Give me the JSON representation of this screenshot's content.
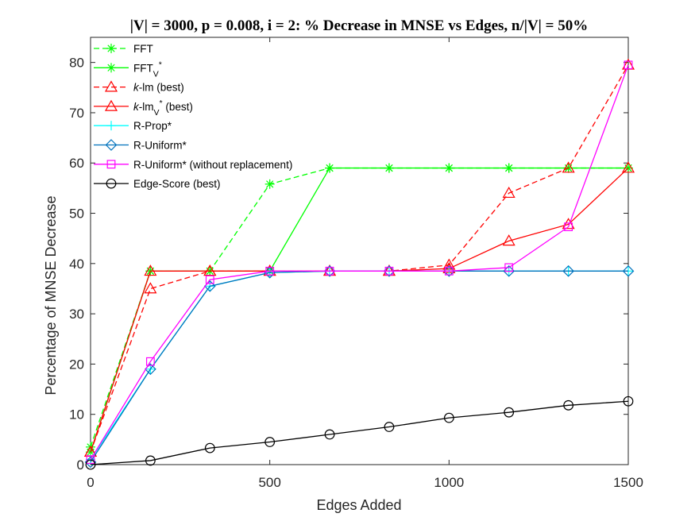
{
  "chart_data": {
    "type": "line",
    "title": "|V| = 3000, p = 0.008, i = 2: % Decrease in MNSE vs Edges, n/|V| = 50%",
    "xlabel": "Edges Added",
    "ylabel": "Percentage of MNSE Decrease",
    "xlim": [
      0,
      1500
    ],
    "ylim": [
      0,
      85
    ],
    "xticks": [
      "0",
      "500",
      "1000",
      "1500"
    ],
    "yticks": [
      "0",
      "10",
      "20",
      "30",
      "40",
      "50",
      "60",
      "70",
      "80"
    ],
    "grid": false,
    "legend_position": "top-left",
    "x": [
      0,
      167,
      333,
      500,
      667,
      833,
      1000,
      1167,
      1333,
      1500
    ],
    "series": [
      {
        "name": "FFT",
        "color": "#00ff00",
        "dash": "dashed",
        "marker": "asterisk",
        "values": [
          3.5,
          38.5,
          38.5,
          55.8,
          59,
          59,
          59,
          59,
          59,
          59
        ]
      },
      {
        "name": "FFT_V*",
        "color": "#00ff00",
        "dash": "solid",
        "marker": "asterisk",
        "values": [
          2.5,
          38.5,
          38.5,
          38.5,
          59,
          59,
          59,
          59,
          59,
          59
        ]
      },
      {
        "name": "k-lm (best)",
        "color": "#ff0000",
        "dash": "dashed",
        "marker": "triangle",
        "values": [
          2.5,
          35,
          38.5,
          38.5,
          38.5,
          38.5,
          39.7,
          54,
          59,
          79.5
        ]
      },
      {
        "name": "k-lm_V* (best)",
        "color": "#ff0000",
        "dash": "solid",
        "marker": "triangle",
        "values": [
          2.5,
          38.5,
          38.5,
          38.5,
          38.5,
          38.5,
          39,
          44.5,
          47.8,
          59
        ]
      },
      {
        "name": "R-Prop*",
        "color": "#00ffff",
        "dash": "solid",
        "marker": "plus",
        "values": [
          1,
          19,
          35.5,
          38.2,
          38.5,
          38.5,
          38.5,
          38.5,
          38.5,
          38.5
        ]
      },
      {
        "name": "R-Uniform*",
        "color": "#0072bd",
        "dash": "solid",
        "marker": "diamond",
        "values": [
          0.5,
          19,
          35.5,
          38.2,
          38.5,
          38.5,
          38.5,
          38.5,
          38.5,
          38.5
        ]
      },
      {
        "name": "R-Uniform* (without replacement)",
        "color": "#ff00ff",
        "dash": "solid",
        "marker": "square",
        "values": [
          1,
          20.5,
          36.8,
          38.5,
          38.5,
          38.5,
          38.5,
          39.2,
          47.3,
          79.5
        ]
      },
      {
        "name": "Edge-Score (best)",
        "color": "#000000",
        "dash": "solid",
        "marker": "circle",
        "values": [
          0,
          0.8,
          3.3,
          4.5,
          6,
          7.5,
          9.3,
          10.4,
          11.8,
          12.6
        ]
      }
    ]
  },
  "legend_labels": [
    {
      "main": "FFT",
      "sub": "",
      "sup": "",
      "rest": "",
      "italic_prefix": ""
    },
    {
      "main": "FFT",
      "sub": "V",
      "sup": "*",
      "rest": "",
      "italic_prefix": ""
    },
    {
      "main": "-lm (best)",
      "sub": "",
      "sup": "",
      "rest": "",
      "italic_prefix": "k"
    },
    {
      "main": "-lm",
      "sub": "V",
      "sup": "*",
      "rest": " (best)",
      "italic_prefix": "k"
    },
    {
      "main": "R-Prop*",
      "sub": "",
      "sup": "",
      "rest": "",
      "italic_prefix": ""
    },
    {
      "main": "R-Uniform*",
      "sub": "",
      "sup": "",
      "rest": "",
      "italic_prefix": ""
    },
    {
      "main": "R-Uniform* (without replacement)",
      "sub": "",
      "sup": "",
      "rest": "",
      "italic_prefix": ""
    },
    {
      "main": "Edge-Score (best)",
      "sub": "",
      "sup": "",
      "rest": "",
      "italic_prefix": ""
    }
  ]
}
